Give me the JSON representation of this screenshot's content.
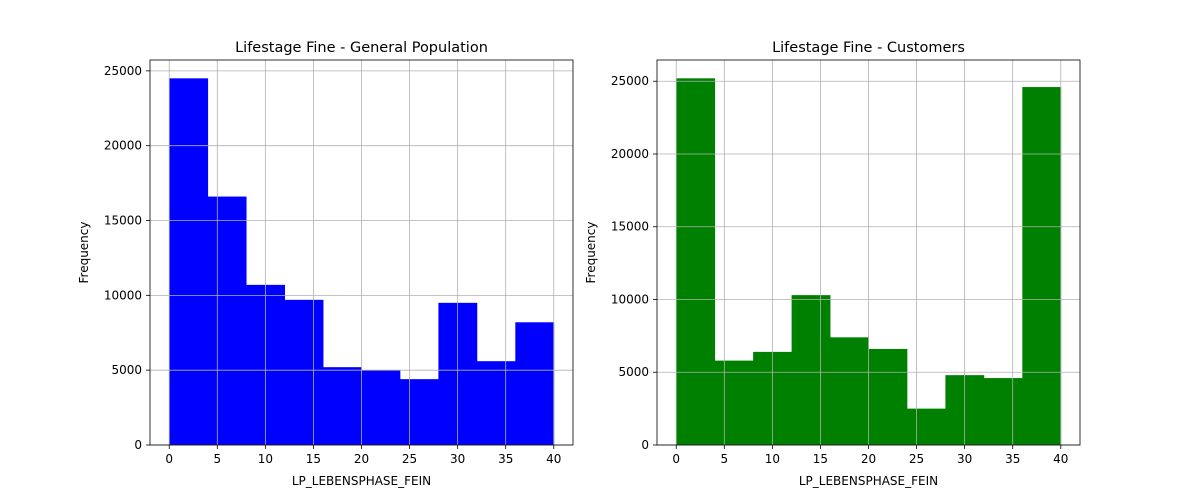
{
  "chart_data": [
    {
      "type": "bar",
      "title": "Lifestage Fine - General Population",
      "xlabel": "LP_LEBENSPHASE_FEIN",
      "ylabel": "Frequency",
      "bin_edges": [
        0,
        4,
        8,
        12,
        16,
        20,
        24,
        28,
        32,
        36,
        40
      ],
      "values": [
        24500,
        16600,
        10700,
        9700,
        5200,
        5000,
        4400,
        9500,
        5600,
        8200
      ],
      "color": "#0000ff",
      "xlim": [
        -2,
        42
      ],
      "ylim": [
        0,
        25725
      ],
      "xticks": [
        0,
        5,
        10,
        15,
        20,
        25,
        30,
        35,
        40
      ],
      "yticks": [
        0,
        5000,
        10000,
        15000,
        20000,
        25000
      ],
      "grid": true
    },
    {
      "type": "bar",
      "title": "Lifestage Fine - Customers",
      "xlabel": "LP_LEBENSPHASE_FEIN",
      "ylabel": "Frequency",
      "bin_edges": [
        0,
        4,
        8,
        12,
        16,
        20,
        24,
        28,
        32,
        36,
        40
      ],
      "values": [
        25200,
        5800,
        6400,
        10300,
        7400,
        6600,
        2500,
        4800,
        4600,
        24600
      ],
      "color": "#008000",
      "xlim": [
        -2,
        42
      ],
      "ylim": [
        0,
        26460
      ],
      "xticks": [
        0,
        5,
        10,
        15,
        20,
        25,
        30,
        35,
        40
      ],
      "yticks": [
        0,
        5000,
        10000,
        15000,
        20000,
        25000
      ],
      "grid": true
    }
  ]
}
